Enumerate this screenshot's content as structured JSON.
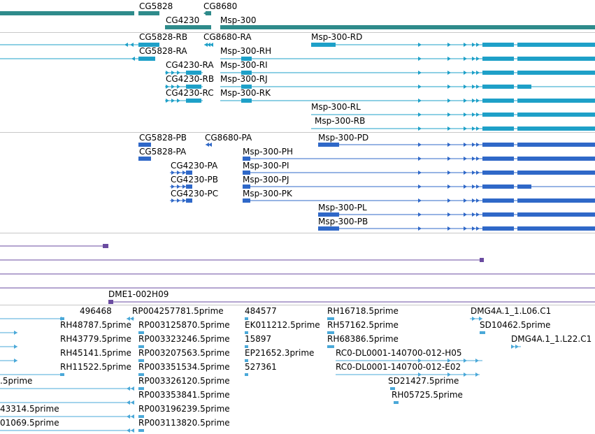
{
  "colors": {
    "gene": "#2e8b8b",
    "transcript": "#1ea0c8",
    "protein": "#2f68c8",
    "clone": "#6a4ba0",
    "est": "#4aa8d8",
    "separator": "#c8c8c8"
  },
  "gene_track": {
    "genes": [
      {
        "label": "CG5828"
      },
      {
        "label": "CG8680"
      },
      {
        "label": "CG4230"
      },
      {
        "label": "Msp-300"
      }
    ]
  },
  "transcript_track": {
    "transcripts": [
      {
        "label": "CG5828-RB"
      },
      {
        "label": "CG8680-RA"
      },
      {
        "label": "Msp-300-RD"
      },
      {
        "label": "CG5828-RA"
      },
      {
        "label": "Msp-300-RH"
      },
      {
        "label": "CG4230-RA"
      },
      {
        "label": "Msp-300-RI"
      },
      {
        "label": "CG4230-RB"
      },
      {
        "label": "Msp-300-RJ"
      },
      {
        "label": "CG4230-RC"
      },
      {
        "label": "Msp-300-RK"
      },
      {
        "label": "Msp-300-RL"
      },
      {
        "label": "Msp-300-RB"
      }
    ]
  },
  "protein_track": {
    "proteins": [
      {
        "label": "CG5828-PB"
      },
      {
        "label": "CG8680-PA"
      },
      {
        "label": "Msp-300-PD"
      },
      {
        "label": "CG5828-PA"
      },
      {
        "label": "Msp-300-PH"
      },
      {
        "label": "CG4230-PA"
      },
      {
        "label": "Msp-300-PI"
      },
      {
        "label": "CG4230-PB"
      },
      {
        "label": "Msp-300-PJ"
      },
      {
        "label": "CG4230-PC"
      },
      {
        "label": "Msp-300-PK"
      },
      {
        "label": "Msp-300-PL"
      },
      {
        "label": "Msp-300-PB"
      }
    ]
  },
  "clone_track": {
    "clones": [
      {
        "label": "DME1-002H09"
      }
    ]
  },
  "est_track": {
    "ests": [
      {
        "label": "496468"
      },
      {
        "label": "RP004257781.5prime"
      },
      {
        "label": "484577"
      },
      {
        "label": "RH16718.5prime"
      },
      {
        "label": "DMG4A.1_1.L06.C1"
      },
      {
        "label": "RH48787.5prime"
      },
      {
        "label": "RP003125870.5prime"
      },
      {
        "label": "EK011212.5prime"
      },
      {
        "label": "RH57162.5prime"
      },
      {
        "label": "SD10462.5prime"
      },
      {
        "label": "RH43779.5prime"
      },
      {
        "label": "RP003323246.5prime"
      },
      {
        "label": "15897"
      },
      {
        "label": "RH68386.5prime"
      },
      {
        "label": "DMG4A.1_1.L22.C1"
      },
      {
        "label": "RH45141.5prime"
      },
      {
        "label": "RP003207563.5prime"
      },
      {
        "label": "EP21652.3prime"
      },
      {
        "label": "RC0-DL0001-140700-012-H05"
      },
      {
        "label": "RH11522.5prime"
      },
      {
        "label": "RP003351534.5prime"
      },
      {
        "label": "527361"
      },
      {
        "label": "RC0-DL0001-140700-012-E02"
      },
      {
        "label": ".5prime"
      },
      {
        "label": "RP003326120.5prime"
      },
      {
        "label": "SD21427.5prime"
      },
      {
        "label": "RP003353841.5prime"
      },
      {
        "label": "RH05725.5prime"
      },
      {
        "label": "43314.5prime"
      },
      {
        "label": "RP003196239.5prime"
      },
      {
        "label": "01069.5prime"
      },
      {
        "label": "RP003113820.5prime"
      }
    ]
  }
}
